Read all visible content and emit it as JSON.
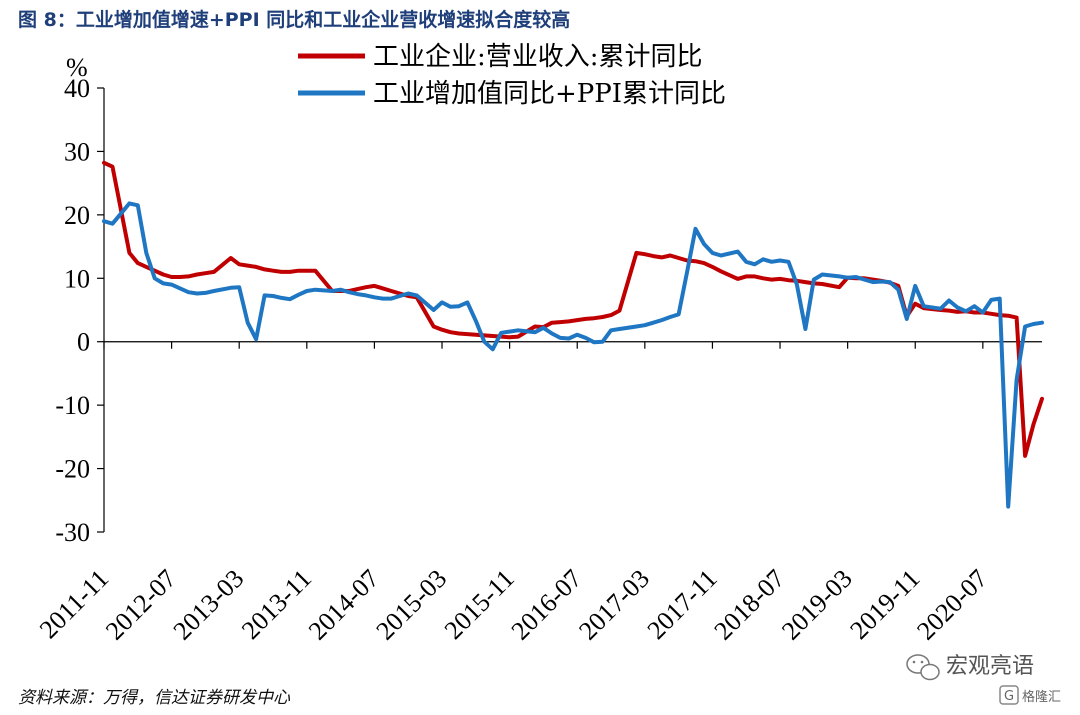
{
  "figure_title": "图 8：工业增加值增速+PPI 同比和工业企业营收增速拟合度较高",
  "source": "资料来源：万得，信达证券研发中心",
  "watermark": {
    "brand": "宏观亮语",
    "logo_text": "格隆汇",
    "logo_letter": "G"
  },
  "chart_data": {
    "type": "line",
    "title": "",
    "ylabel": "%",
    "xlabel": "",
    "ylim": [
      -30,
      40
    ],
    "yticks": [
      40,
      30,
      20,
      10,
      0,
      -10,
      -20,
      -30
    ],
    "ytick_labels": [
      "40",
      "30",
      "20",
      "10",
      "0",
      "-10",
      "-20",
      "-30"
    ],
    "xlim": [
      "2011-11",
      "2021-02"
    ],
    "xtick_labels": [
      "2011-11",
      "2012-07",
      "2013-03",
      "2013-11",
      "2014-07",
      "2015-03",
      "2015-11",
      "2016-07",
      "2017-03",
      "2017-11",
      "2018-07",
      "2019-03",
      "2019-11",
      "2020-07"
    ],
    "grid": false,
    "legend_position": "top",
    "series": [
      {
        "name": "工业企业:营业收入:累计同比",
        "color": "#c00000",
        "points": [
          [
            "2011-11",
            28.2
          ],
          [
            "2011-12",
            27.6
          ],
          [
            "2012-02",
            14.0
          ],
          [
            "2012-03",
            12.4
          ],
          [
            "2012-04",
            11.8
          ],
          [
            "2012-05",
            11.2
          ],
          [
            "2012-06",
            10.6
          ],
          [
            "2012-07",
            10.2
          ],
          [
            "2012-08",
            10.2
          ],
          [
            "2012-09",
            10.3
          ],
          [
            "2012-10",
            10.6
          ],
          [
            "2012-11",
            10.8
          ],
          [
            "2012-12",
            11.0
          ],
          [
            "2013-02",
            13.2
          ],
          [
            "2013-03",
            12.2
          ],
          [
            "2013-04",
            12.0
          ],
          [
            "2013-05",
            11.8
          ],
          [
            "2013-06",
            11.4
          ],
          [
            "2013-07",
            11.2
          ],
          [
            "2013-08",
            11.0
          ],
          [
            "2013-09",
            11.0
          ],
          [
            "2013-10",
            11.2
          ],
          [
            "2013-11",
            11.2
          ],
          [
            "2013-12",
            11.2
          ],
          [
            "2014-02",
            8.0
          ],
          [
            "2014-03",
            8.0
          ],
          [
            "2014-04",
            8.0
          ],
          [
            "2014-05",
            8.3
          ],
          [
            "2014-06",
            8.6
          ],
          [
            "2014-07",
            8.8
          ],
          [
            "2014-08",
            8.4
          ],
          [
            "2014-09",
            8.0
          ],
          [
            "2014-10",
            7.6
          ],
          [
            "2014-11",
            7.2
          ],
          [
            "2014-12",
            7.0
          ],
          [
            "2015-02",
            2.4
          ],
          [
            "2015-03",
            1.9
          ],
          [
            "2015-04",
            1.5
          ],
          [
            "2015-05",
            1.3
          ],
          [
            "2015-06",
            1.2
          ],
          [
            "2015-07",
            1.1
          ],
          [
            "2015-08",
            1.0
          ],
          [
            "2015-09",
            0.9
          ],
          [
            "2015-10",
            0.8
          ],
          [
            "2015-11",
            0.7
          ],
          [
            "2015-12",
            0.8
          ],
          [
            "2016-02",
            2.4
          ],
          [
            "2016-03",
            2.3
          ],
          [
            "2016-04",
            3.0
          ],
          [
            "2016-05",
            3.1
          ],
          [
            "2016-06",
            3.2
          ],
          [
            "2016-07",
            3.4
          ],
          [
            "2016-08",
            3.6
          ],
          [
            "2016-09",
            3.7
          ],
          [
            "2016-10",
            3.9
          ],
          [
            "2016-11",
            4.2
          ],
          [
            "2016-12",
            4.9
          ],
          [
            "2017-02",
            14.0
          ],
          [
            "2017-03",
            13.8
          ],
          [
            "2017-04",
            13.5
          ],
          [
            "2017-05",
            13.3
          ],
          [
            "2017-06",
            13.6
          ],
          [
            "2017-07",
            13.2
          ],
          [
            "2017-08",
            12.8
          ],
          [
            "2017-09",
            12.7
          ],
          [
            "2017-10",
            12.4
          ],
          [
            "2017-11",
            11.8
          ],
          [
            "2017-12",
            11.1
          ],
          [
            "2018-02",
            9.9
          ],
          [
            "2018-03",
            10.3
          ],
          [
            "2018-04",
            10.3
          ],
          [
            "2018-05",
            10.0
          ],
          [
            "2018-06",
            9.8
          ],
          [
            "2018-07",
            9.9
          ],
          [
            "2018-08",
            9.7
          ],
          [
            "2018-09",
            9.6
          ],
          [
            "2018-10",
            9.4
          ],
          [
            "2018-11",
            9.2
          ],
          [
            "2018-12",
            9.1
          ],
          [
            "2019-02",
            8.6
          ],
          [
            "2019-03",
            10.1
          ],
          [
            "2019-04",
            10.0
          ],
          [
            "2019-05",
            10.0
          ],
          [
            "2019-06",
            9.8
          ],
          [
            "2019-07",
            9.6
          ],
          [
            "2019-08",
            9.3
          ],
          [
            "2019-09",
            8.8
          ],
          [
            "2019-10",
            4.0
          ],
          [
            "2019-11",
            6.0
          ],
          [
            "2019-12",
            5.3
          ],
          [
            "2020-02",
            5.0
          ],
          [
            "2020-03",
            4.9
          ],
          [
            "2020-04",
            4.7
          ],
          [
            "2020-05",
            4.8
          ],
          [
            "2020-06",
            4.6
          ],
          [
            "2020-07",
            4.6
          ],
          [
            "2020-08",
            4.4
          ],
          [
            "2020-09",
            4.2
          ],
          [
            "2020-10",
            4.1
          ],
          [
            "2020-11",
            3.8
          ],
          [
            "2020-12",
            -18.0
          ],
          [
            "2021-01",
            -13.0
          ],
          [
            "2021-02",
            -9.0
          ]
        ]
      },
      {
        "name": "工业增加值同比+PPI累计同比",
        "color": "#1f77c4",
        "points": [
          [
            "2011-11",
            19.0
          ],
          [
            "2011-12",
            18.6
          ],
          [
            "2012-02",
            21.8
          ],
          [
            "2012-03",
            21.5
          ],
          [
            "2012-04",
            14.0
          ],
          [
            "2012-05",
            10.0
          ],
          [
            "2012-06",
            9.2
          ],
          [
            "2012-07",
            9.0
          ],
          [
            "2012-08",
            8.4
          ],
          [
            "2012-09",
            7.8
          ],
          [
            "2012-10",
            7.6
          ],
          [
            "2012-11",
            7.7
          ],
          [
            "2012-12",
            8.0
          ],
          [
            "2013-02",
            8.5
          ],
          [
            "2013-03",
            8.6
          ],
          [
            "2013-04",
            3.0
          ],
          [
            "2013-05",
            0.4
          ],
          [
            "2013-06",
            7.3
          ],
          [
            "2013-07",
            7.2
          ],
          [
            "2013-08",
            6.9
          ],
          [
            "2013-09",
            6.7
          ],
          [
            "2013-10",
            7.4
          ],
          [
            "2013-11",
            8.0
          ],
          [
            "2013-12",
            8.2
          ],
          [
            "2014-02",
            8.0
          ],
          [
            "2014-03",
            8.2
          ],
          [
            "2014-04",
            7.8
          ],
          [
            "2014-05",
            7.5
          ],
          [
            "2014-06",
            7.3
          ],
          [
            "2014-07",
            7.0
          ],
          [
            "2014-08",
            6.8
          ],
          [
            "2014-09",
            6.8
          ],
          [
            "2014-10",
            7.2
          ],
          [
            "2014-11",
            7.6
          ],
          [
            "2014-12",
            7.3
          ],
          [
            "2015-02",
            5.0
          ],
          [
            "2015-03",
            6.2
          ],
          [
            "2015-04",
            5.5
          ],
          [
            "2015-05",
            5.6
          ],
          [
            "2015-06",
            6.2
          ],
          [
            "2015-07",
            3.3
          ],
          [
            "2015-08",
            0.0
          ],
          [
            "2015-09",
            -1.2
          ],
          [
            "2015-10",
            1.4
          ],
          [
            "2015-11",
            1.6
          ],
          [
            "2015-12",
            1.8
          ],
          [
            "2016-02",
            1.5
          ],
          [
            "2016-03",
            2.2
          ],
          [
            "2016-04",
            1.3
          ],
          [
            "2016-05",
            0.6
          ],
          [
            "2016-06",
            0.5
          ],
          [
            "2016-07",
            1.1
          ],
          [
            "2016-08",
            0.6
          ],
          [
            "2016-09",
            -0.1
          ],
          [
            "2016-10",
            0.0
          ],
          [
            "2016-11",
            1.8
          ],
          [
            "2016-12",
            2.0
          ],
          [
            "2017-02",
            2.4
          ],
          [
            "2017-03",
            2.6
          ],
          [
            "2017-04",
            3.0
          ],
          [
            "2017-05",
            3.4
          ],
          [
            "2017-06",
            3.9
          ],
          [
            "2017-07",
            4.3
          ],
          [
            "2017-08",
            11.0
          ],
          [
            "2017-09",
            17.8
          ],
          [
            "2017-10",
            15.4
          ],
          [
            "2017-11",
            14.0
          ],
          [
            "2017-12",
            13.6
          ],
          [
            "2018-02",
            14.2
          ],
          [
            "2018-03",
            12.6
          ],
          [
            "2018-04",
            12.2
          ],
          [
            "2018-05",
            13.0
          ],
          [
            "2018-06",
            12.6
          ],
          [
            "2018-07",
            12.8
          ],
          [
            "2018-08",
            12.6
          ],
          [
            "2018-09",
            9.0
          ],
          [
            "2018-10",
            2.0
          ],
          [
            "2018-11",
            9.8
          ],
          [
            "2018-12",
            10.6
          ],
          [
            "2019-02",
            10.3
          ],
          [
            "2019-03",
            10.1
          ],
          [
            "2019-04",
            10.2
          ],
          [
            "2019-05",
            9.8
          ],
          [
            "2019-06",
            9.4
          ],
          [
            "2019-07",
            9.5
          ],
          [
            "2019-08",
            9.4
          ],
          [
            "2019-09",
            8.2
          ],
          [
            "2019-10",
            3.6
          ],
          [
            "2019-11",
            8.8
          ],
          [
            "2019-12",
            5.6
          ],
          [
            "2020-02",
            5.2
          ],
          [
            "2020-03",
            6.5
          ],
          [
            "2020-04",
            5.4
          ],
          [
            "2020-05",
            4.8
          ],
          [
            "2020-06",
            5.6
          ],
          [
            "2020-07",
            4.6
          ],
          [
            "2020-08",
            6.6
          ],
          [
            "2020-09",
            6.8
          ],
          [
            "2020-10",
            -26.0
          ],
          [
            "2020-11",
            -6.0
          ],
          [
            "2020-12",
            2.4
          ],
          [
            "2021-01",
            2.8
          ],
          [
            "2021-02",
            3.0
          ]
        ]
      }
    ]
  }
}
